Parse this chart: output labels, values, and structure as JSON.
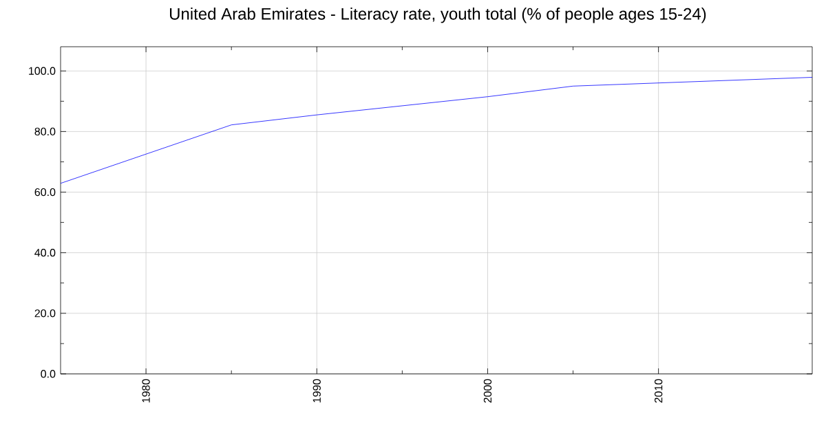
{
  "chart_data": {
    "type": "line",
    "title": "United Arab Emirates - Literacy rate, youth total (% of people ages 15-24)",
    "x": [
      1975,
      1985,
      1990,
      2000,
      2005,
      2019
    ],
    "series": [
      {
        "color": "#0000ff",
        "values": [
          62.9,
          82.2,
          85.5,
          91.5,
          95.0,
          97.9
        ]
      }
    ],
    "xlim": [
      1975,
      2019
    ],
    "xticks": [
      1980,
      1990,
      2000,
      2010
    ],
    "ylim": [
      0,
      108
    ],
    "yticks": [
      {
        "value": 0,
        "label": "0.0"
      },
      {
        "value": 20,
        "label": "20.0"
      },
      {
        "value": 40,
        "label": "40.0"
      },
      {
        "value": 60,
        "label": "60.0"
      },
      {
        "value": 80,
        "label": "80.0"
      },
      {
        "value": 100,
        "label": "100.0"
      }
    ],
    "grid": true,
    "marker": "none",
    "line_style": "solid"
  }
}
